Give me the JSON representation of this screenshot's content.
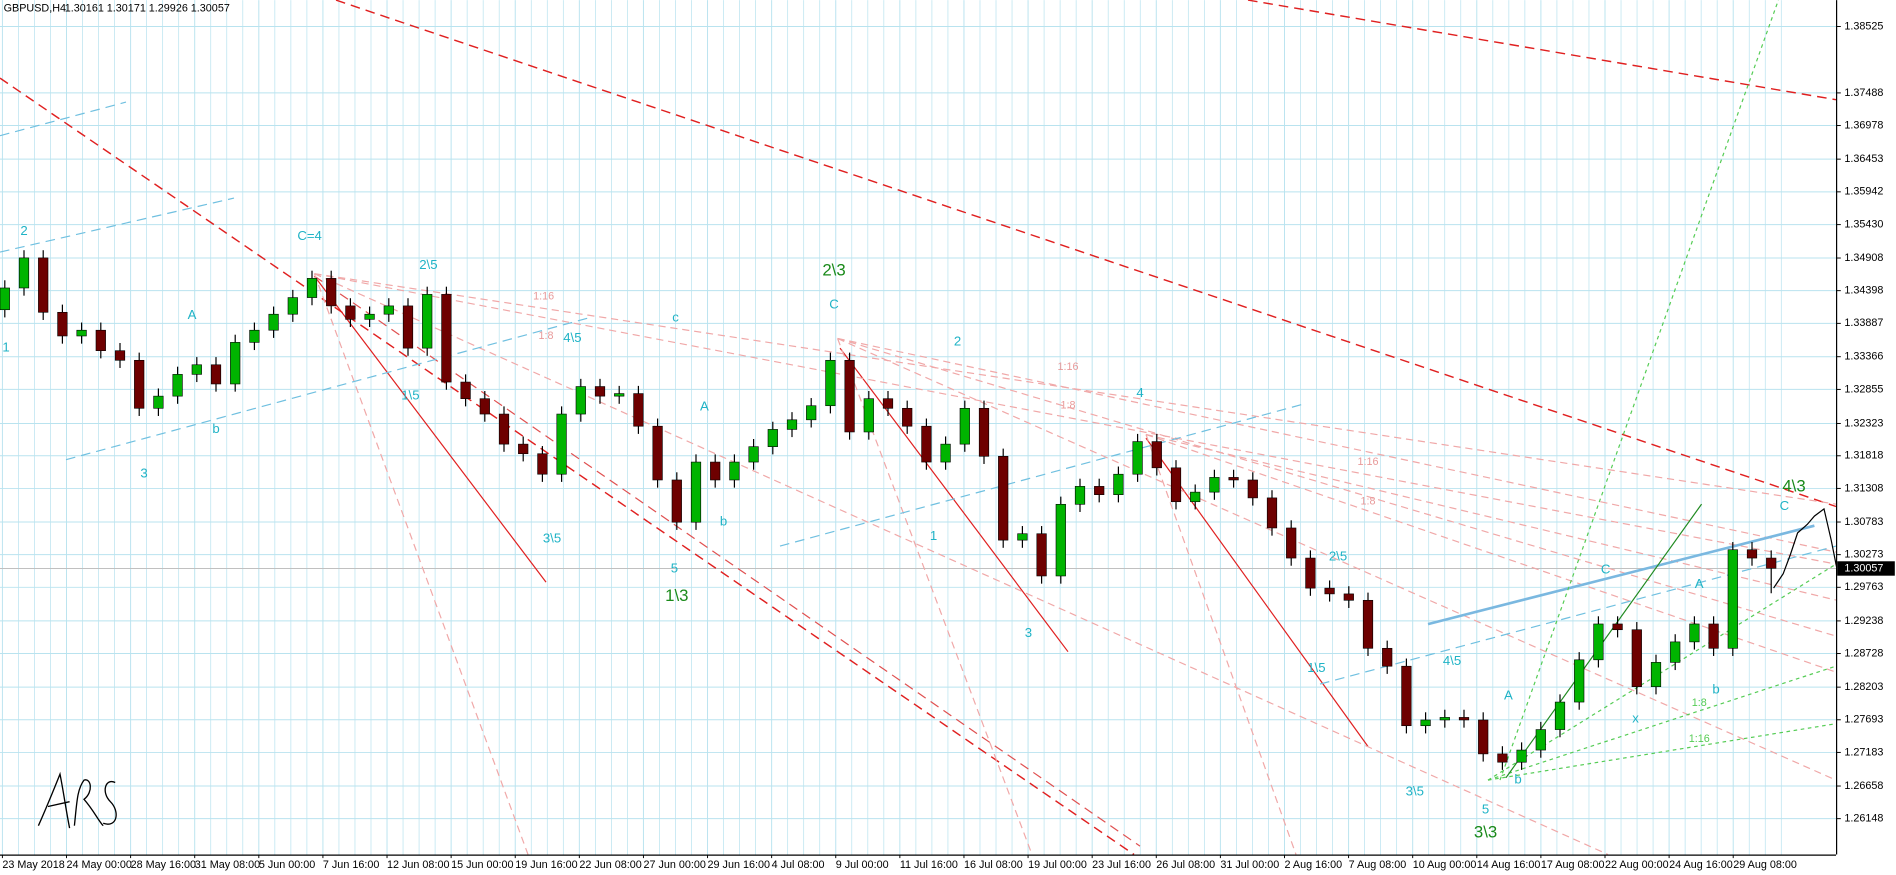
{
  "chart_data": {
    "type": "candlestick",
    "title": "GBPUSD,H4",
    "header_ohlc": [
      1.30161,
      1.30171,
      1.29926,
      1.30057
    ],
    "x": [
      "23 May 2018",
      "24 May 00:00",
      "28 May 16:00",
      "31 May 08:00",
      "5 Jun 00:00",
      "7 Jun 16:00",
      "12 Jun 08:00",
      "15 Jun 00:00",
      "19 Jun 16:00",
      "22 Jun 08:00",
      "27 Jun 00:00",
      "29 Jun 16:00",
      "4 Jul 08:00",
      "9 Jul 00:00",
      "11 Jul 16:00",
      "16 Jul 08:00",
      "19 Jul 00:00",
      "23 Jul 16:00",
      "26 Jul 08:00",
      "31 Jul 00:00",
      "2 Aug 16:00",
      "7 Aug 08:00",
      "10 Aug 00:00",
      "14 Aug 16:00",
      "17 Aug 08:00",
      "22 Aug 00:00",
      "24 Aug 16:00",
      "29 Aug 08:00"
    ],
    "candles": [
      [
        1.341,
        1.3456,
        1.3398,
        1.3444
      ],
      [
        1.3444,
        1.3503,
        1.3432,
        1.3491
      ],
      [
        1.3491,
        1.3503,
        1.3394,
        1.3406
      ],
      [
        1.3406,
        1.3418,
        1.3357,
        1.3369
      ],
      [
        1.3369,
        1.339,
        1.3357,
        1.3378
      ],
      [
        1.3378,
        1.339,
        1.3334,
        1.3346
      ],
      [
        1.3346,
        1.3358,
        1.3319,
        1.3331
      ],
      [
        1.3331,
        1.3343,
        1.3244,
        1.3256
      ],
      [
        1.3256,
        1.3287,
        1.3244,
        1.3275
      ],
      [
        1.3275,
        1.3321,
        1.3263,
        1.3309
      ],
      [
        1.3309,
        1.3336,
        1.3297,
        1.3324
      ],
      [
        1.3324,
        1.3336,
        1.3282,
        1.3294
      ],
      [
        1.3294,
        1.3371,
        1.3282,
        1.3359
      ],
      [
        1.3359,
        1.339,
        1.3347,
        1.3378
      ],
      [
        1.3378,
        1.3415,
        1.3366,
        1.3403
      ],
      [
        1.3403,
        1.3441,
        1.3391,
        1.3429
      ],
      [
        1.3429,
        1.3471,
        1.3417,
        1.3459
      ],
      [
        1.3459,
        1.3471,
        1.3404,
        1.3416
      ],
      [
        1.3416,
        1.3428,
        1.3383,
        1.3395
      ],
      [
        1.3395,
        1.3415,
        1.3383,
        1.3403
      ],
      [
        1.3403,
        1.3428,
        1.3391,
        1.3416
      ],
      [
        1.3416,
        1.3428,
        1.3338,
        1.335
      ],
      [
        1.335,
        1.3446,
        1.3338,
        1.3434
      ],
      [
        1.3434,
        1.3446,
        1.3285,
        1.3297
      ],
      [
        1.3297,
        1.3309,
        1.3259,
        1.3271
      ],
      [
        1.3271,
        1.3283,
        1.3235,
        1.3247
      ],
      [
        1.3247,
        1.3259,
        1.3188,
        1.32
      ],
      [
        1.32,
        1.3212,
        1.3173,
        1.3185
      ],
      [
        1.3185,
        1.3197,
        1.3141,
        1.3153
      ],
      [
        1.3153,
        1.3259,
        1.3141,
        1.3247
      ],
      [
        1.3247,
        1.3302,
        1.3235,
        1.329
      ],
      [
        1.329,
        1.3302,
        1.3263,
        1.3275
      ],
      [
        1.3275,
        1.3291,
        1.3263,
        1.3279
      ],
      [
        1.3279,
        1.3291,
        1.3216,
        1.3228
      ],
      [
        1.3228,
        1.324,
        1.3132,
        1.3144
      ],
      [
        1.3144,
        1.3156,
        1.3066,
        1.3078
      ],
      [
        1.3078,
        1.3184,
        1.3066,
        1.3172
      ],
      [
        1.3172,
        1.3184,
        1.3132,
        1.3144
      ],
      [
        1.3144,
        1.3184,
        1.3132,
        1.3172
      ],
      [
        1.3172,
        1.3208,
        1.316,
        1.3196
      ],
      [
        1.3196,
        1.3235,
        1.3184,
        1.3223
      ],
      [
        1.3223,
        1.325,
        1.3211,
        1.3238
      ],
      [
        1.3238,
        1.3272,
        1.3226,
        1.326
      ],
      [
        1.326,
        1.3343,
        1.3248,
        1.3331
      ],
      [
        1.3331,
        1.3343,
        1.3207,
        1.3219
      ],
      [
        1.3219,
        1.3283,
        1.3207,
        1.3271
      ],
      [
        1.3271,
        1.3283,
        1.3244,
        1.3256
      ],
      [
        1.3256,
        1.3268,
        1.3216,
        1.3228
      ],
      [
        1.3228,
        1.324,
        1.316,
        1.3172
      ],
      [
        1.3172,
        1.3212,
        1.316,
        1.32
      ],
      [
        1.32,
        1.3268,
        1.3188,
        1.3256
      ],
      [
        1.3256,
        1.3268,
        1.3169,
        1.3181
      ],
      [
        1.3181,
        1.3193,
        1.3038,
        1.305
      ],
      [
        1.305,
        1.3072,
        1.3038,
        1.306
      ],
      [
        1.306,
        1.3072,
        1.2982,
        1.2994
      ],
      [
        1.2994,
        1.3118,
        1.2982,
        1.3106
      ],
      [
        1.3106,
        1.3146,
        1.3094,
        1.3134
      ],
      [
        1.3134,
        1.3146,
        1.3109,
        1.3121
      ],
      [
        1.3121,
        1.3165,
        1.3109,
        1.3153
      ],
      [
        1.3153,
        1.3216,
        1.3141,
        1.3204
      ],
      [
        1.3204,
        1.3216,
        1.3151,
        1.3163
      ],
      [
        1.3163,
        1.3175,
        1.3098,
        1.311
      ],
      [
        1.311,
        1.3137,
        1.3098,
        1.3125
      ],
      [
        1.3125,
        1.316,
        1.3113,
        1.3148
      ],
      [
        1.3148,
        1.316,
        1.3132,
        1.3144
      ],
      [
        1.3144,
        1.3156,
        1.3104,
        1.3116
      ],
      [
        1.3116,
        1.3128,
        1.3057,
        1.3069
      ],
      [
        1.3069,
        1.3081,
        1.301,
        1.3022
      ],
      [
        1.3022,
        1.3034,
        1.2963,
        1.2975
      ],
      [
        1.2975,
        1.2987,
        1.2954,
        1.2966
      ],
      [
        1.2966,
        1.2978,
        1.2944,
        1.2956
      ],
      [
        1.2956,
        1.2968,
        1.2869,
        1.2881
      ],
      [
        1.2881,
        1.2893,
        1.2841,
        1.2853
      ],
      [
        1.2853,
        1.2865,
        1.2748,
        1.276
      ],
      [
        1.276,
        1.2781,
        1.2748,
        1.2769
      ],
      [
        1.2769,
        1.2785,
        1.2757,
        1.2773
      ],
      [
        1.2773,
        1.2785,
        1.2757,
        1.2769
      ],
      [
        1.2769,
        1.2781,
        1.2704,
        1.2716
      ],
      [
        1.2716,
        1.2728,
        1.2691,
        1.2703
      ],
      [
        1.2703,
        1.2734,
        1.2691,
        1.2722
      ],
      [
        1.2722,
        1.2766,
        1.271,
        1.2754
      ],
      [
        1.2754,
        1.2809,
        1.2742,
        1.2797
      ],
      [
        1.2797,
        1.2875,
        1.2785,
        1.2863
      ],
      [
        1.2863,
        1.2931,
        1.2851,
        1.2919
      ],
      [
        1.2919,
        1.2931,
        1.2898,
        1.291
      ],
      [
        1.291,
        1.2922,
        1.2809,
        1.2821
      ],
      [
        1.2821,
        1.2871,
        1.2809,
        1.2859
      ],
      [
        1.2859,
        1.2903,
        1.2847,
        1.2891
      ],
      [
        1.2891,
        1.2931,
        1.2879,
        1.2919
      ],
      [
        1.2919,
        1.2931,
        1.2869,
        1.2881
      ],
      [
        1.2881,
        1.3047,
        1.2869,
        1.3035
      ],
      [
        1.3035,
        1.3047,
        1.301,
        1.3022
      ],
      [
        1.3022,
        1.3034,
        1.2967,
        1.3006
      ]
    ],
    "ylim": [
      1.25588,
      1.38938
    ],
    "yticks": [
      1.38525,
      1.37488,
      1.36978,
      1.36453,
      1.35942,
      {
        "value": 1.3543,
        "label": "1.35430"
      },
      1.34908,
      1.34398,
      1.33887,
      1.33366,
      1.32855,
      1.32323,
      1.31818,
      1.31308,
      1.30783,
      1.30273,
      1.29763,
      1.29238,
      1.28728,
      1.28203,
      1.27693,
      1.27183,
      1.26658,
      1.26148
    ],
    "current_price": 1.30057,
    "grid": true,
    "up_color": "#00b400",
    "down_color": "#6e0000",
    "wick_color": "#000000",
    "annotations": [
      {
        "text": "2",
        "color": "#1fb3c6"
      },
      {
        "text": "1",
        "color": "#1fb3c6"
      },
      {
        "text": "A",
        "color": "#1fb3c6"
      },
      {
        "text": "b",
        "color": "#1fb3c6"
      },
      {
        "text": "3",
        "color": "#1fb3c6"
      },
      {
        "text": "C=4",
        "color": "#1fb3c6"
      },
      {
        "text": "2\\5",
        "color": "#1fb3c6"
      },
      {
        "text": "4\\5",
        "color": "#1fb3c6"
      },
      {
        "text": "c",
        "color": "#1fb3c6"
      },
      {
        "text": "1\\5",
        "color": "#1fb3c6"
      },
      {
        "text": "3\\5",
        "color": "#1fb3c6"
      },
      {
        "text": "5",
        "color": "#1fb3c6"
      },
      {
        "text": "A",
        "color": "#1fb3c6"
      },
      {
        "text": "b",
        "color": "#1fb3c6"
      },
      {
        "text": "C",
        "color": "#1fb3c6"
      },
      {
        "text": "2",
        "color": "#1fb3c6"
      },
      {
        "text": "1",
        "color": "#1fb3c6"
      },
      {
        "text": "3",
        "color": "#1fb3c6"
      },
      {
        "text": "4",
        "color": "#1fb3c6"
      },
      {
        "text": "2\\5",
        "color": "#1fb3c6"
      },
      {
        "text": "1\\5",
        "color": "#1fb3c6"
      },
      {
        "text": "4\\5",
        "color": "#1fb3c6"
      },
      {
        "text": "3\\5",
        "color": "#1fb3c6"
      },
      {
        "text": "5",
        "color": "#1fb3c6"
      },
      {
        "text": "A",
        "color": "#1fb3c6"
      },
      {
        "text": "b",
        "color": "#1fb3c6"
      },
      {
        "text": "C",
        "color": "#1fb3c6"
      },
      {
        "text": "A",
        "color": "#1fb3c6"
      },
      {
        "text": "x",
        "color": "#1fb3c6"
      },
      {
        "text": "b",
        "color": "#1fb3c6"
      },
      {
        "text": "C",
        "color": "#1fb3c6"
      },
      {
        "text": "2\\3",
        "color": "#1a8a1a"
      },
      {
        "text": "1\\3",
        "color": "#1a8a1a"
      },
      {
        "text": "3\\3",
        "color": "#1a8a1a"
      },
      {
        "text": "4\\3",
        "color": "#1a8a1a"
      },
      {
        "text": "1:16",
        "color": "#e89a9a"
      },
      {
        "text": "1:8",
        "color": "#e89a9a"
      },
      {
        "text": "1:16",
        "color": "#e89a9a"
      },
      {
        "text": "1:8",
        "color": "#e89a9a"
      },
      {
        "text": "1:16",
        "color": "#e89a9a"
      },
      {
        "text": "1:8",
        "color": "#e89a9a"
      },
      {
        "text": "1:8",
        "color": "#55cc55"
      },
      {
        "text": "1:16",
        "color": "#55cc55"
      }
    ]
  }
}
